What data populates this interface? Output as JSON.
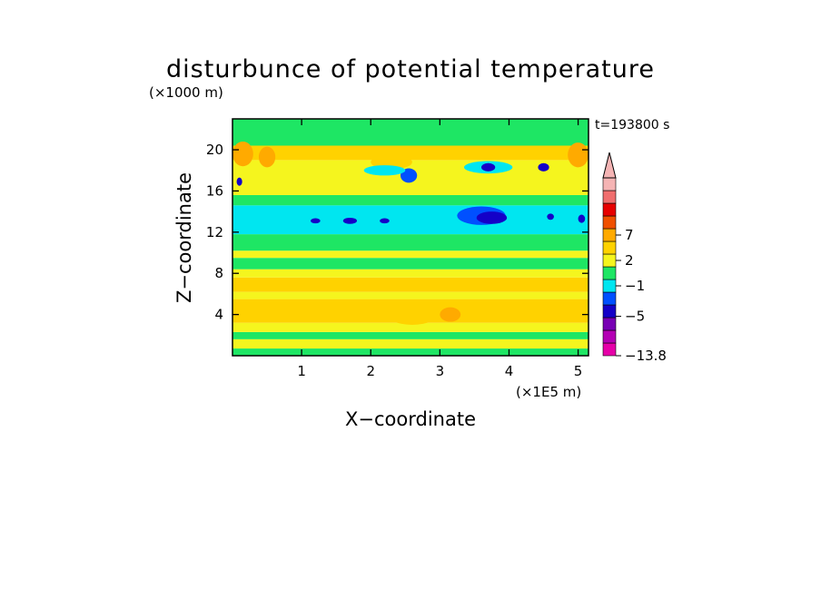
{
  "chart_data": {
    "type": "heatmap",
    "title": "disturbunce of potential temperature",
    "z_unit_label": "(×1000 m)",
    "x_unit_label": "(×1E5 m)",
    "xlabel": "X−coordinate",
    "ylabel": "Z−coordinate",
    "time_label": "t=193800 s",
    "x_range": [
      0,
      5.15
    ],
    "z_range": [
      0,
      23
    ],
    "x_ticks": [
      {
        "value": 1,
        "label": "1"
      },
      {
        "value": 2,
        "label": "2"
      },
      {
        "value": 3,
        "label": "3"
      },
      {
        "value": 4,
        "label": "4"
      },
      {
        "value": 5,
        "label": "5"
      }
    ],
    "z_ticks": [
      {
        "value": 4,
        "label": "4"
      },
      {
        "value": 8,
        "label": "8"
      },
      {
        "value": 12,
        "label": "12"
      },
      {
        "value": 16,
        "label": "16"
      },
      {
        "value": 20,
        "label": "20"
      }
    ],
    "colorbar": {
      "min": -13.8,
      "levels": [
        {
          "color": "#e600a8"
        },
        {
          "color": "#b400b4"
        },
        {
          "color": "#7800b4"
        },
        {
          "color": "#1400c8"
        },
        {
          "color": "#0050ff"
        },
        {
          "color": "#00e6f0"
        },
        {
          "color": "#1ee664"
        },
        {
          "color": "#f5f51e"
        },
        {
          "color": "#ffd200"
        },
        {
          "color": "#ffaa00"
        },
        {
          "color": "#f05000"
        },
        {
          "color": "#e60000"
        },
        {
          "color": "#f06e6e"
        },
        {
          "color": "#f5b4b4"
        }
      ],
      "labels": [
        {
          "value": 7,
          "text": "7"
        },
        {
          "value": 2,
          "text": "2"
        },
        {
          "value": -1,
          "text": "−1"
        },
        {
          "value": -5,
          "text": "−5"
        },
        {
          "value": -13.8,
          "text": "−13.8"
        }
      ],
      "extend": "max"
    },
    "bands": [
      {
        "z_bottom": 0,
        "z_top": 0.7,
        "color": "#1ee664"
      },
      {
        "z_bottom": 0.7,
        "z_top": 1.6,
        "color": "#f5f51e"
      },
      {
        "z_bottom": 1.6,
        "z_top": 2.3,
        "color": "#1ee664"
      },
      {
        "z_bottom": 2.3,
        "z_top": 3.2,
        "color": "#f5f51e"
      },
      {
        "z_bottom": 3.2,
        "z_top": 5.5,
        "color": "#ffd200"
      },
      {
        "z_bottom": 5.5,
        "z_top": 6.2,
        "color": "#f5f51e"
      },
      {
        "z_bottom": 6.2,
        "z_top": 7.6,
        "color": "#ffd200"
      },
      {
        "z_bottom": 7.6,
        "z_top": 8.4,
        "color": "#f5f51e"
      },
      {
        "z_bottom": 8.4,
        "z_top": 9.5,
        "color": "#1ee664"
      },
      {
        "z_bottom": 9.5,
        "z_top": 10.2,
        "color": "#f5f51e"
      },
      {
        "z_bottom": 10.2,
        "z_top": 11.8,
        "color": "#1ee664"
      },
      {
        "z_bottom": 11.8,
        "z_top": 14.6,
        "color": "#00e6f0"
      },
      {
        "z_bottom": 14.6,
        "z_top": 15.6,
        "color": "#1ee664"
      },
      {
        "z_bottom": 15.6,
        "z_top": 19.0,
        "color": "#f5f51e"
      },
      {
        "z_bottom": 19.0,
        "z_top": 20.4,
        "color": "#ffd200"
      },
      {
        "z_bottom": 20.4,
        "z_top": 23,
        "color": "#1ee664"
      }
    ],
    "patches": [
      {
        "x": 0.15,
        "z": 19.6,
        "rx": 0.15,
        "rz": 1.2,
        "color": "#ffaa00"
      },
      {
        "x": 0.5,
        "z": 19.3,
        "rx": 0.12,
        "rz": 1.0,
        "color": "#ffaa00"
      },
      {
        "x": 5.0,
        "z": 19.5,
        "rx": 0.15,
        "rz": 1.2,
        "color": "#ffaa00"
      },
      {
        "x": 2.3,
        "z": 18.8,
        "rx": 0.3,
        "rz": 0.7,
        "color": "#ffd200"
      },
      {
        "x": 2.6,
        "z": 4.2,
        "rx": 0.4,
        "rz": 1.2,
        "color": "#ffd200"
      },
      {
        "x": 3.15,
        "z": 4.0,
        "rx": 0.15,
        "rz": 0.7,
        "color": "#ffaa00"
      },
      {
        "x": 3.6,
        "z": 13.6,
        "rx": 0.35,
        "rz": 0.9,
        "color": "#0050ff"
      },
      {
        "x": 3.75,
        "z": 13.4,
        "rx": 0.22,
        "rz": 0.6,
        "color": "#1400c8"
      },
      {
        "x": 2.55,
        "z": 17.5,
        "rx": 0.12,
        "rz": 0.7,
        "color": "#0050ff"
      },
      {
        "x": 2.2,
        "z": 18.0,
        "rx": 0.3,
        "rz": 0.5,
        "color": "#00e6f0"
      },
      {
        "x": 3.7,
        "z": 18.3,
        "rx": 0.35,
        "rz": 0.6,
        "color": "#00e6f0"
      },
      {
        "x": 3.7,
        "z": 18.3,
        "rx": 0.1,
        "rz": 0.4,
        "color": "#1400c8"
      },
      {
        "x": 4.5,
        "z": 18.3,
        "rx": 0.08,
        "rz": 0.4,
        "color": "#1400c8"
      },
      {
        "x": 1.2,
        "z": 13.1,
        "rx": 0.07,
        "rz": 0.25,
        "color": "#1400c8"
      },
      {
        "x": 1.7,
        "z": 13.1,
        "rx": 0.1,
        "rz": 0.3,
        "color": "#1400c8"
      },
      {
        "x": 2.2,
        "z": 13.1,
        "rx": 0.07,
        "rz": 0.25,
        "color": "#1400c8"
      },
      {
        "x": 0.1,
        "z": 16.9,
        "rx": 0.04,
        "rz": 0.4,
        "color": "#1400c8"
      },
      {
        "x": 4.6,
        "z": 13.5,
        "rx": 0.05,
        "rz": 0.3,
        "color": "#1400c8"
      },
      {
        "x": 5.05,
        "z": 13.3,
        "rx": 0.05,
        "rz": 0.4,
        "color": "#1400c8"
      }
    ]
  }
}
